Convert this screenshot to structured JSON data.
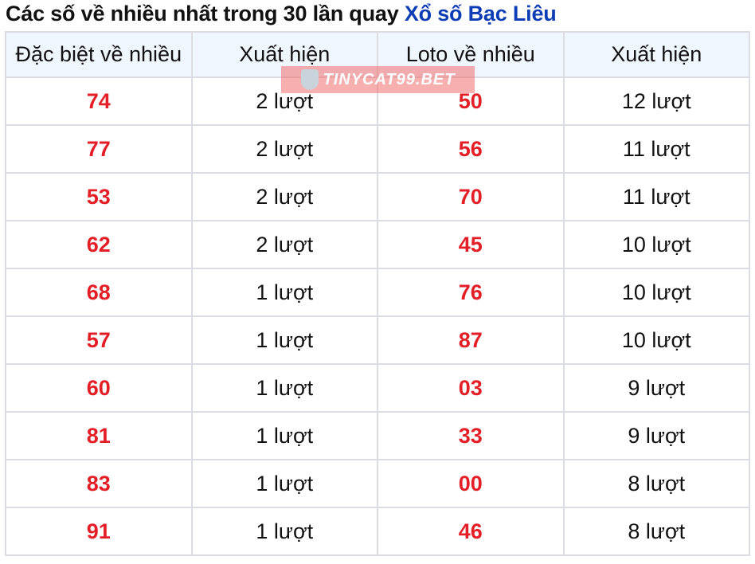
{
  "title": {
    "text": "Các số về nhiều nhất trong 30 lần quay ",
    "link": "Xổ số Bạc Liêu"
  },
  "headers": [
    "Đặc biệt về nhiều",
    "Xuất hiện",
    "Loto về nhiều",
    "Xuất hiện"
  ],
  "rows": [
    [
      "74",
      "2 lượt",
      "50",
      "12 lượt"
    ],
    [
      "77",
      "2 lượt",
      "56",
      "11 lượt"
    ],
    [
      "53",
      "2 lượt",
      "70",
      "11 lượt"
    ],
    [
      "62",
      "2 lượt",
      "45",
      "10 lượt"
    ],
    [
      "68",
      "1 lượt",
      "76",
      "10 lượt"
    ],
    [
      "57",
      "1 lượt",
      "87",
      "10 lượt"
    ],
    [
      "60",
      "1 lượt",
      "03",
      "9 lượt"
    ],
    [
      "81",
      "1 lượt",
      "33",
      "9 lượt"
    ],
    [
      "83",
      "1 lượt",
      "00",
      "8 lượt"
    ],
    [
      "91",
      "1 lượt",
      "46",
      "8 lượt"
    ]
  ],
  "watermark": "TINYCAT99.BET",
  "colors": {
    "number": "#e41e26",
    "link": "#0d3db5",
    "header_bg": "#f0f6fd"
  }
}
